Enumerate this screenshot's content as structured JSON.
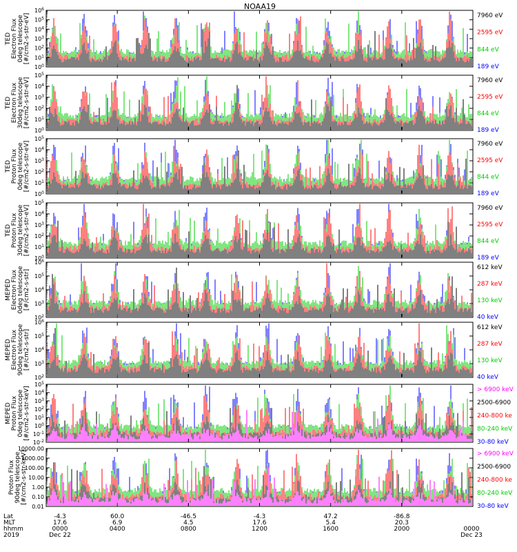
{
  "chart_data": {
    "type": "line",
    "title": "NOAA19",
    "panels": [
      {
        "ylabel": [
          "TED",
          "Electron Flux",
          "0deg telescope",
          "[#/cm2-s-str-eV]"
        ],
        "yscale": "log",
        "ticks": [
          "10^0",
          "10^1",
          "10^2",
          "10^3",
          "10^4",
          "10^5",
          "10^6"
        ],
        "legend": [
          {
            "label": "7960 eV",
            "color": "#000000"
          },
          {
            "label": "2595 eV",
            "color": "#ff0000"
          },
          {
            "label": "844 eV",
            "color": "#00cc00"
          },
          {
            "label": "189 eV",
            "color": "#0000ff"
          }
        ]
      },
      {
        "ylabel": [
          "TED",
          "Electron Flux",
          "30deg telescope",
          "[#/cm2-s-str-eV]"
        ],
        "yscale": "log",
        "ticks": [
          "10^0",
          "10^1",
          "10^2",
          "10^3",
          "10^4",
          "10^5"
        ],
        "legend": [
          {
            "label": "7960 eV",
            "color": "#000000"
          },
          {
            "label": "2595 eV",
            "color": "#ff0000"
          },
          {
            "label": "844 eV",
            "color": "#00cc00"
          },
          {
            "label": "189 eV",
            "color": "#0000ff"
          }
        ]
      },
      {
        "ylabel": [
          "TED",
          "Proton Flux",
          "0deg telescope",
          "[#/cm2-s-str-eV]"
        ],
        "yscale": "log",
        "ticks": [
          "10^0",
          "10^1",
          "10^2",
          "10^3",
          "10^4",
          "10^5"
        ],
        "legend": [
          {
            "label": "7960 eV",
            "color": "#000000"
          },
          {
            "label": "2595 eV",
            "color": "#ff0000"
          },
          {
            "label": "844 eV",
            "color": "#00cc00"
          },
          {
            "label": "189 eV",
            "color": "#0000ff"
          }
        ]
      },
      {
        "ylabel": [
          "TED",
          "Proton Flux",
          "30deg telescope",
          "[#/cm2-s-str-eV]"
        ],
        "yscale": "log",
        "ticks": [
          "10^0",
          "10^1",
          "10^2",
          "10^3",
          "10^4",
          "10^5"
        ],
        "legend": [
          {
            "label": "7960 eV",
            "color": "#000000"
          },
          {
            "label": "2595 eV",
            "color": "#ff0000"
          },
          {
            "label": "844 eV",
            "color": "#00cc00"
          },
          {
            "label": "189 eV",
            "color": "#0000ff"
          }
        ]
      },
      {
        "ylabel": [
          "MEPED",
          "Electron Flux",
          "0deg telescope",
          "[#/cm2-s-str]"
        ],
        "yscale": "log",
        "ticks": [
          "10^2",
          "10^3",
          "10^4",
          "10^5",
          "10^6"
        ],
        "legend": [
          {
            "label": "612 keV",
            "color": "#000000"
          },
          {
            "label": "287 keV",
            "color": "#ff0000"
          },
          {
            "label": "130 keV",
            "color": "#00cc00"
          },
          {
            "label": "40 keV",
            "color": "#0000ff"
          }
        ]
      },
      {
        "ylabel": [
          "MEPED",
          "Electron Flux",
          "90deg telescope",
          "[#/cm2-s-str]"
        ],
        "yscale": "log",
        "ticks": [
          "10^2",
          "10^3",
          "10^4",
          "10^5",
          "10^6"
        ],
        "legend": [
          {
            "label": "612 keV",
            "color": "#000000"
          },
          {
            "label": "287 keV",
            "color": "#ff0000"
          },
          {
            "label": "130 keV",
            "color": "#00cc00"
          },
          {
            "label": "40 keV",
            "color": "#0000ff"
          }
        ]
      },
      {
        "ylabel": [
          "MEPED",
          "Proton Flux",
          "0deg telescope",
          "[#/cm2-s-str-keV]"
        ],
        "yscale": "log",
        "ticks": [
          "10^-2",
          "10^-1",
          "10^0",
          "10^1",
          "10^2",
          "10^3",
          "10^4",
          "10^5"
        ],
        "legend": [
          {
            "label": "> 6900 keV",
            "color": "#ff00ff"
          },
          {
            "label": "2500-6900",
            "color": "#000000"
          },
          {
            "label": "240-800 ke",
            "color": "#ff0000"
          },
          {
            "label": "80-240 keV",
            "color": "#00cc00"
          },
          {
            "label": "30-80 keV",
            "color": "#0000ff"
          }
        ]
      },
      {
        "ylabel": [
          "Proton Flux",
          "90deg telescope",
          "[#/cm2-s-str-keV]"
        ],
        "yscale": "log",
        "ticks": [
          "0.01",
          "0.10",
          "1.00",
          "10.00",
          "100.00",
          "1000.00",
          "10000.00"
        ],
        "legend": [
          {
            "label": "> 6900 keV",
            "color": "#ff00ff"
          },
          {
            "label": "2500-6900",
            "color": "#000000"
          },
          {
            "label": "240-800 ke",
            "color": "#ff0000"
          },
          {
            "label": "80-240 keV",
            "color": "#00cc00"
          },
          {
            "label": "30-80 keV",
            "color": "#0000ff"
          }
        ]
      }
    ],
    "xaxis": {
      "row_labels": [
        "Lat",
        "MLT",
        "hhmm",
        "2019"
      ],
      "ticks": [
        {
          "lat": "-4.3",
          "mlt": "17.6",
          "hhmm": "0000",
          "date": "Dec 22"
        },
        {
          "lat": "60.0",
          "mlt": "6.9",
          "hhmm": "0400",
          "date": ""
        },
        {
          "lat": "-46.5",
          "mlt": "4.5",
          "hhmm": "0800",
          "date": ""
        },
        {
          "lat": "-4.3",
          "mlt": "17.6",
          "hhmm": "1200",
          "date": ""
        },
        {
          "lat": "47.2",
          "mlt": "5.4",
          "hhmm": "1600",
          "date": ""
        },
        {
          "lat": "-86.8",
          "mlt": "20.3",
          "hhmm": "2000",
          "date": ""
        },
        {
          "lat": "",
          "mlt": "",
          "hhmm": "0000",
          "date": "Dec 23"
        }
      ]
    }
  }
}
